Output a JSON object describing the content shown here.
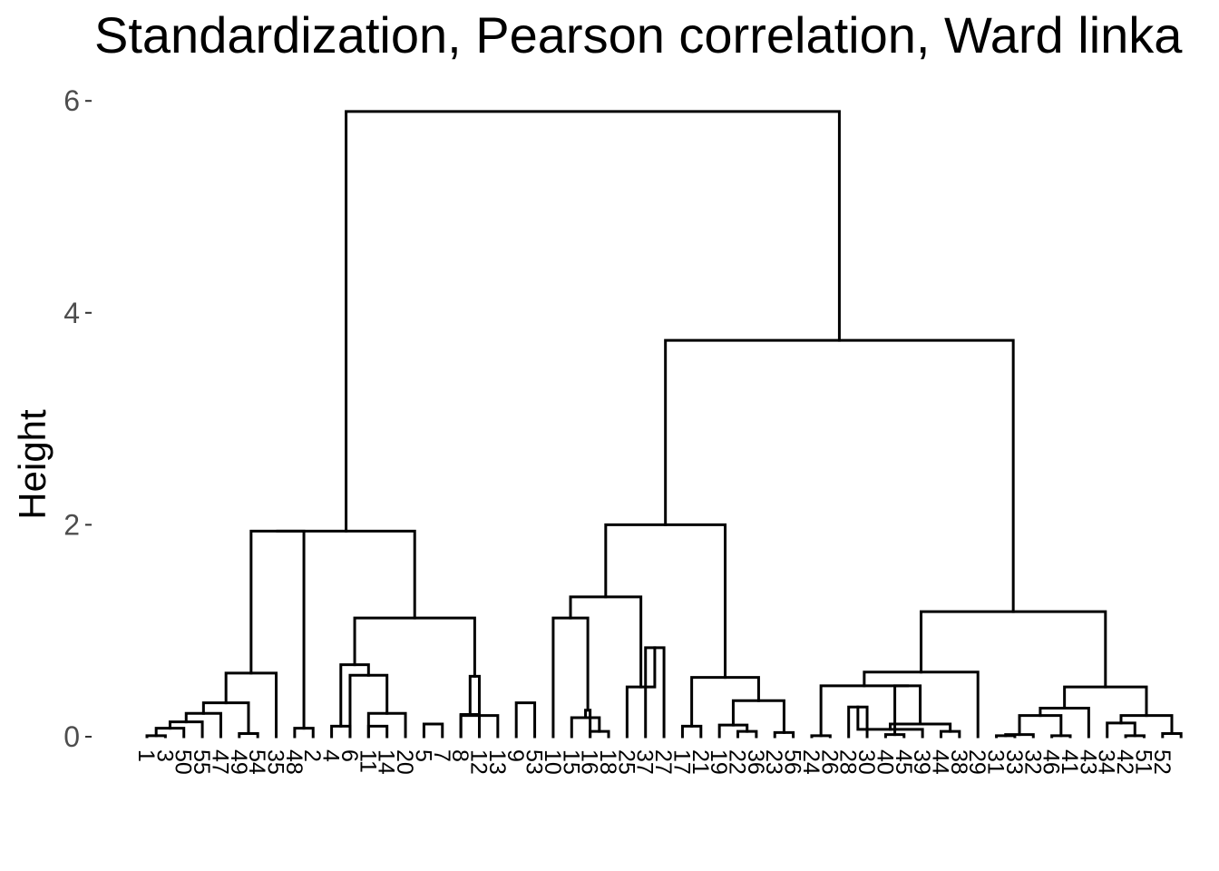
{
  "chart_data": {
    "type": "dendrogram",
    "title": "Standardization, Pearson correlation, Ward linka",
    "xlabel": "",
    "ylabel": "Height",
    "ylim": [
      0,
      6.2
    ],
    "yticks": [
      0,
      2,
      4,
      6
    ],
    "ytick_labels": [
      "0",
      "2",
      "4",
      "6"
    ],
    "grid": false,
    "leaves": [
      "1",
      "3",
      "50",
      "55",
      "47",
      "49",
      "54",
      "35",
      "48",
      "2",
      "4",
      "6",
      "11",
      "14",
      "20",
      "5",
      "7",
      "8",
      "12",
      "13",
      "9",
      "53",
      "10",
      "15",
      "16",
      "18",
      "25",
      "37",
      "27",
      "17",
      "21",
      "19",
      "22",
      "36",
      "23",
      "56",
      "24",
      "26",
      "28",
      "30",
      "40",
      "45",
      "39",
      "44",
      "38",
      "29",
      "31",
      "33",
      "32",
      "46",
      "41",
      "43",
      "34",
      "42",
      "51",
      "52"
    ],
    "merges": [
      [
        1,
        2,
        0.01
      ],
      [
        -1,
        3,
        0.08
      ],
      [
        -2,
        4,
        0.14
      ],
      [
        -3,
        5,
        0.22
      ],
      [
        6,
        7,
        0.03
      ],
      [
        -4,
        -5,
        0.32
      ],
      [
        -6,
        8,
        0.6
      ],
      [
        9,
        10,
        0.08
      ],
      [
        -7,
        -8,
        1.94
      ],
      [
        11,
        12,
        0.1
      ],
      [
        13,
        14,
        0.1
      ],
      [
        13,
        15,
        0.22
      ],
      [
        12,
        -12,
        0.58
      ],
      [
        -10,
        -13,
        0.68
      ],
      [
        16,
        17,
        0.12
      ],
      [
        18,
        19,
        0.21
      ],
      [
        18,
        20,
        0.2
      ],
      [
        -16,
        -17,
        0.57
      ],
      [
        -14,
        -18,
        1.12
      ],
      [
        -9,
        -19,
        1.94
      ],
      [
        21,
        22,
        0.32
      ],
      [
        25,
        26,
        0.05
      ],
      [
        24,
        -22,
        0.18
      ],
      [
        -23,
        25,
        0.25
      ],
      [
        23,
        -24,
        1.12
      ],
      [
        28,
        29,
        0.84
      ],
      [
        27,
        -26,
        0.47
      ],
      [
        -25,
        -27,
        1.32
      ],
      [
        30,
        31,
        0.1
      ],
      [
        33,
        34,
        0.05
      ],
      [
        32,
        -30,
        0.11
      ],
      [
        35,
        36,
        0.04
      ],
      [
        -31,
        -32,
        0.34
      ],
      [
        -29,
        -33,
        0.56
      ],
      [
        -28,
        -34,
        2.0
      ],
      [
        37,
        38,
        0.01
      ],
      [
        39,
        40,
        0.28
      ],
      [
        41,
        42,
        0.02
      ],
      [
        -37,
        43,
        0.07
      ],
      [
        44,
        45,
        0.05
      ],
      [
        -39,
        -40,
        0.12
      ],
      [
        -38,
        -41,
        0.48
      ],
      [
        -36,
        -42,
        0.48
      ],
      [
        -43,
        46,
        0.61
      ],
      [
        47,
        48,
        0.01
      ],
      [
        -45,
        49,
        0.02
      ],
      [
        50,
        51,
        0.01
      ],
      [
        -46,
        -47,
        0.2
      ],
      [
        -48,
        52,
        0.27
      ],
      [
        54,
        55,
        0.01
      ],
      [
        53,
        -50,
        0.13
      ],
      [
        56,
        57,
        0.03
      ],
      [
        -51,
        -52,
        0.2
      ],
      [
        -49,
        -53,
        0.47
      ],
      [
        -44,
        -54,
        1.18
      ],
      [
        -35,
        -55,
        3.74
      ],
      [
        -20,
        -56,
        5.9
      ]
    ]
  }
}
